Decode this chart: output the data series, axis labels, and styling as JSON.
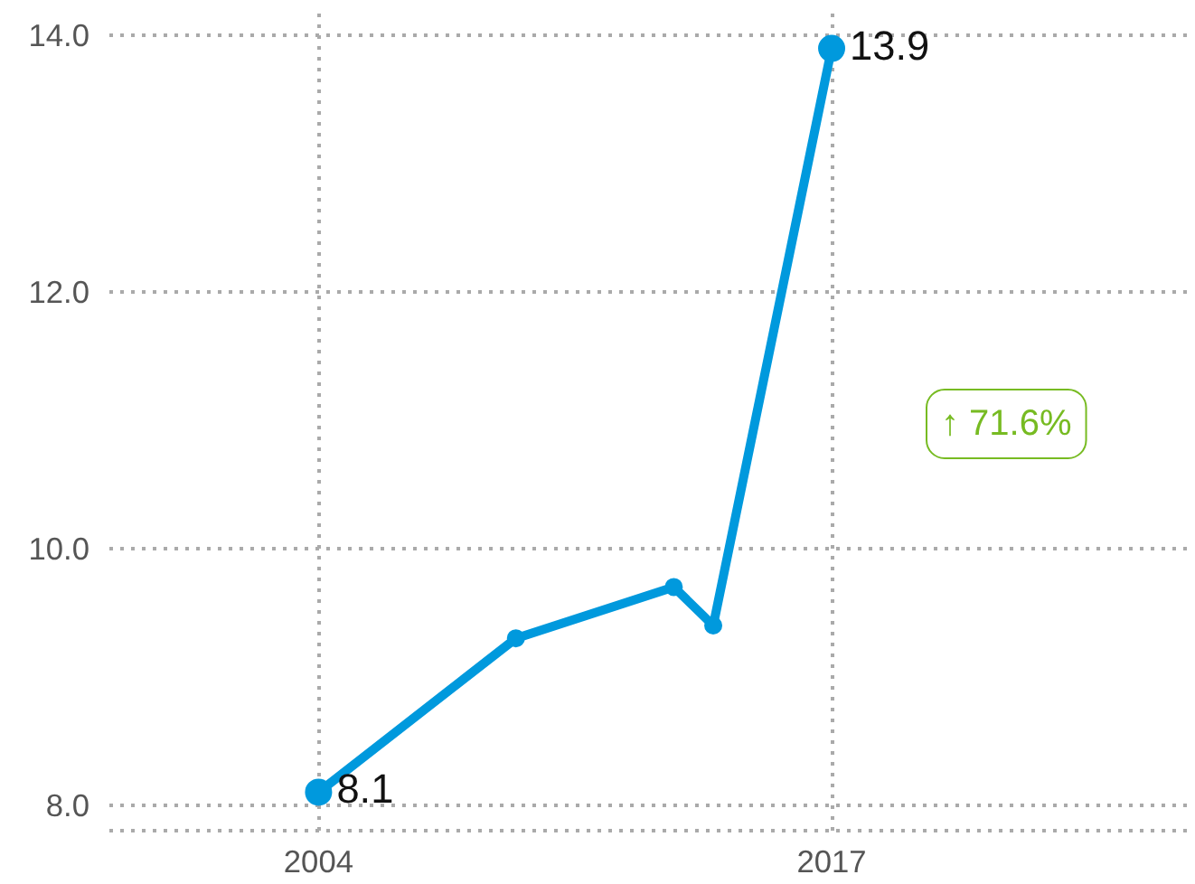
{
  "chart_data": {
    "type": "line",
    "x": [
      2004,
      2009,
      2013,
      2014,
      2017
    ],
    "series": [
      {
        "color": "#0099dd",
        "values": [
          8.1,
          9.3,
          9.7,
          9.4,
          13.9
        ],
        "value_labels": [
          "8.1",
          null,
          null,
          null,
          "13.9"
        ]
      }
    ],
    "xlim": [
      1998.7,
      2026
    ],
    "ylim": [
      7.8,
      14.2
    ],
    "xticks": [
      2004,
      2017
    ],
    "yticks": [
      {
        "value": 8,
        "label": "8.0"
      },
      {
        "value": 10,
        "label": "10.0"
      },
      {
        "value": 12,
        "label": "12.0"
      },
      {
        "value": 14,
        "label": "14.0"
      }
    ],
    "grid": true,
    "marker": "circle",
    "line_style": "solid",
    "annotations": [
      "↑ 71.6%"
    ]
  }
}
